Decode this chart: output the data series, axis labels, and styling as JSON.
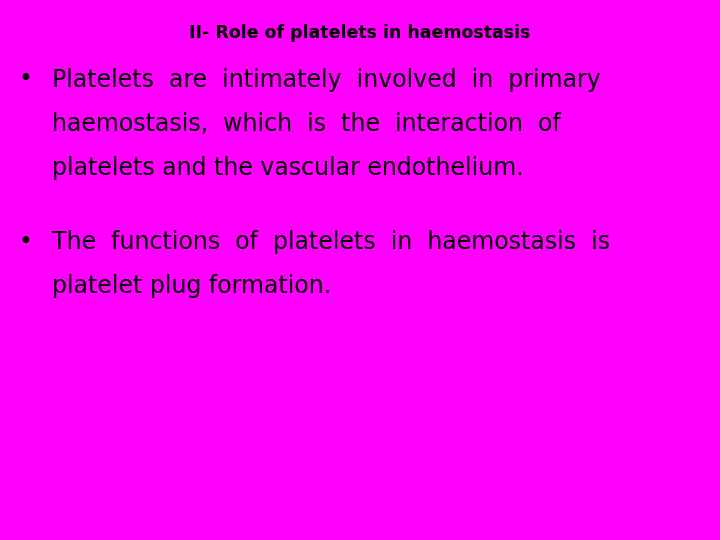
{
  "background_color": "#FF00FF",
  "title": "II- Role of platelets in haemostasis",
  "title_fontsize": 12.5,
  "title_color": "#000000",
  "title_bold": true,
  "bullet_color": "#000000",
  "bullet_fontsize": 17,
  "bullet1_lines": [
    "Platelets  are  intimately  involved  in  primary",
    "haemostasis,  which  is  the  interaction  of",
    "platelets and the vascular endothelium."
  ],
  "bullet2_lines": [
    "The  functions  of  platelets  in  haemostasis  is",
    "platelet plug formation."
  ],
  "text_color": "#000000",
  "fig_width": 7.2,
  "fig_height": 5.4,
  "dpi": 100
}
